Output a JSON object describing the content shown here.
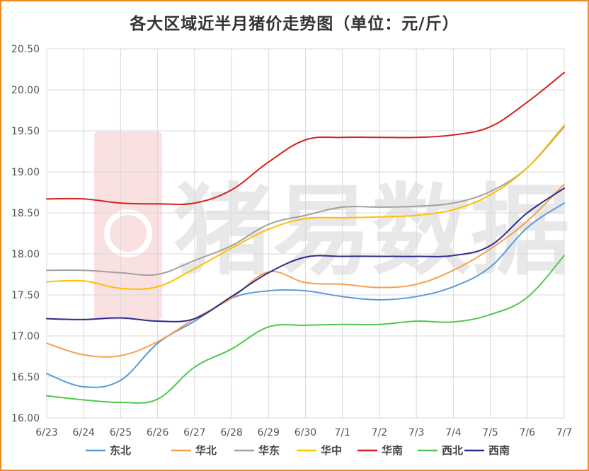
{
  "chart_data": {
    "type": "line",
    "title": "各大区域近半月猪价走势图（单位：元/斤）",
    "watermark": "猪易数据",
    "categories": [
      "6/23",
      "6/24",
      "6/25",
      "6/26",
      "6/27",
      "6/28",
      "6/29",
      "6/30",
      "7/1",
      "7/2",
      "7/3",
      "7/4",
      "7/5",
      "7/6",
      "7/7"
    ],
    "ylim": [
      16.0,
      20.5
    ],
    "yticks": [
      "16.00",
      "16.50",
      "17.00",
      "17.50",
      "18.00",
      "18.50",
      "19.00",
      "19.50",
      "20.00",
      "20.50"
    ],
    "grid": true,
    "legend_position": "bottom",
    "series": [
      {
        "name": "东北",
        "color": "#5b9bd5",
        "values": [
          16.54,
          16.38,
          16.46,
          16.91,
          17.18,
          17.46,
          17.55,
          17.55,
          17.48,
          17.44,
          17.48,
          17.6,
          17.84,
          18.32,
          18.62
        ]
      },
      {
        "name": "华北",
        "color": "#f5a04b",
        "values": [
          16.91,
          16.77,
          16.76,
          16.93,
          17.21,
          17.46,
          17.78,
          17.65,
          17.63,
          17.59,
          17.63,
          17.8,
          18.06,
          18.4,
          18.85
        ]
      },
      {
        "name": "华东",
        "color": "#a0a0a0",
        "values": [
          17.8,
          17.8,
          17.77,
          17.75,
          17.92,
          18.1,
          18.36,
          18.47,
          18.57,
          18.57,
          18.58,
          18.62,
          18.76,
          19.05,
          19.55
        ]
      },
      {
        "name": "华中",
        "color": "#ffc000",
        "values": [
          17.66,
          17.67,
          17.58,
          17.6,
          17.82,
          18.07,
          18.3,
          18.43,
          18.44,
          18.45,
          18.47,
          18.54,
          18.72,
          19.05,
          19.57
        ]
      },
      {
        "name": "华南",
        "color": "#d62020",
        "values": [
          18.67,
          18.67,
          18.62,
          18.61,
          18.62,
          18.78,
          19.12,
          19.39,
          19.42,
          19.42,
          19.42,
          19.45,
          19.55,
          19.85,
          20.21
        ]
      },
      {
        "name": "西北",
        "color": "#4fc94f",
        "values": [
          16.27,
          16.22,
          16.19,
          16.23,
          16.62,
          16.84,
          17.11,
          17.13,
          17.14,
          17.14,
          17.18,
          17.17,
          17.26,
          17.47,
          17.98
        ]
      },
      {
        "name": "西南",
        "color": "#2b2b8f",
        "values": [
          17.21,
          17.2,
          17.22,
          17.18,
          17.21,
          17.48,
          17.77,
          17.96,
          17.97,
          17.97,
          17.97,
          17.98,
          18.1,
          18.5,
          18.8
        ]
      }
    ]
  }
}
